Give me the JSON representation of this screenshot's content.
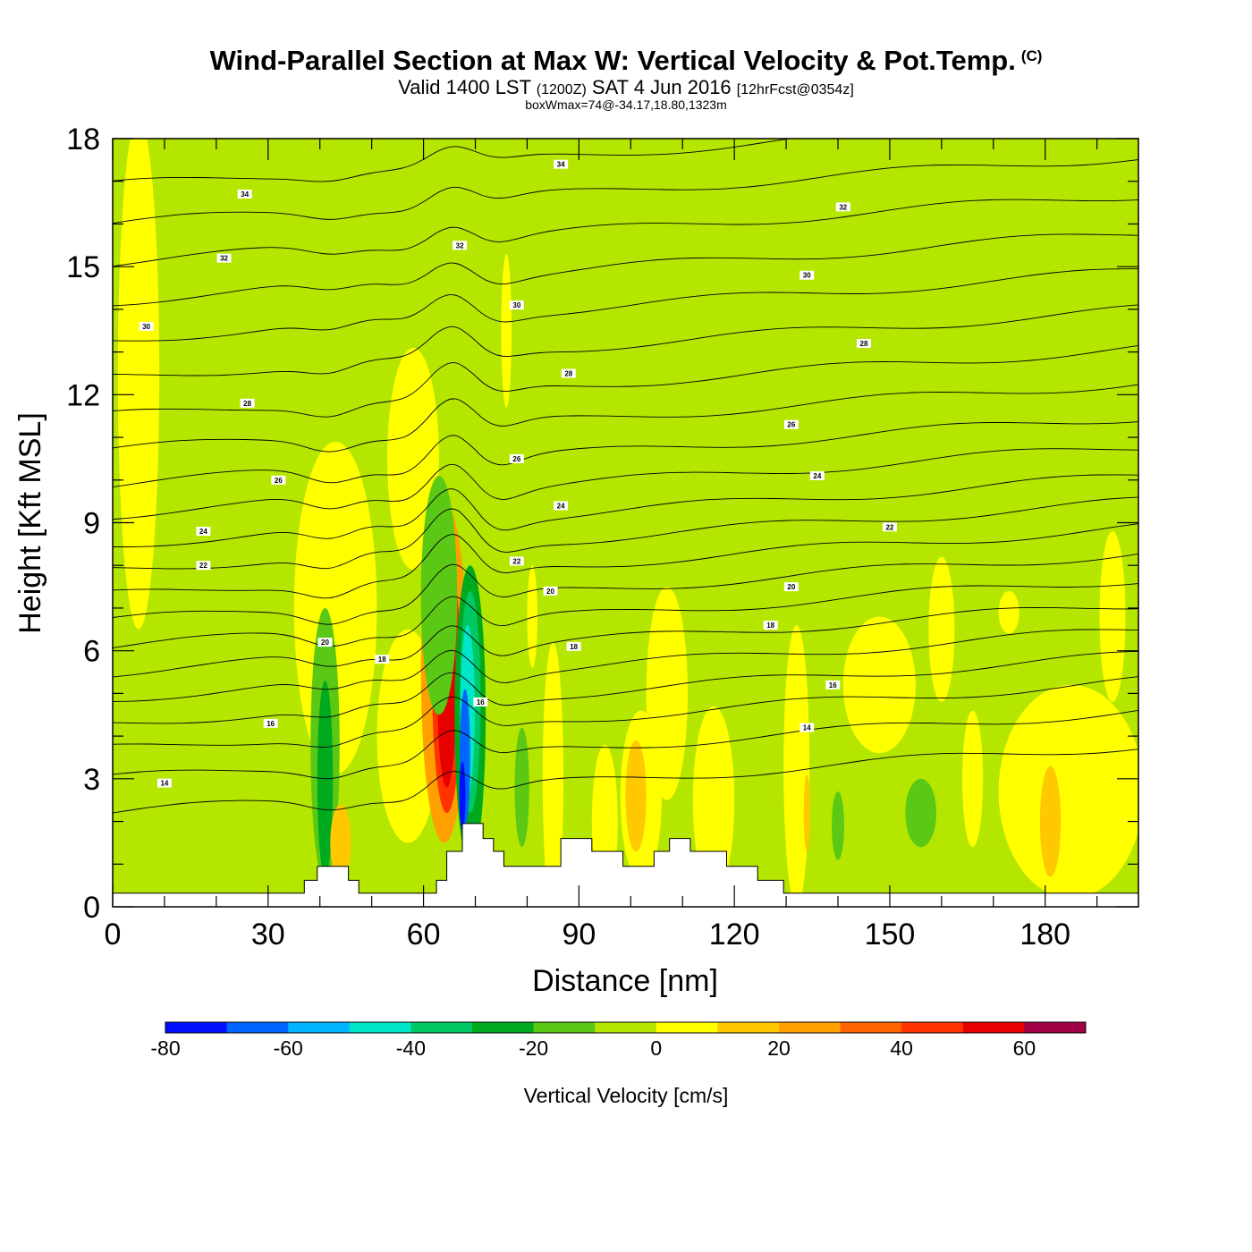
{
  "title": {
    "main": "Wind-Parallel Section at Max W: Vertical Velocity & Pot.Temp.",
    "copyright": "(C)",
    "valid_prefix": "Valid 1400 LST",
    "valid_utc": "(1200Z)",
    "valid_date": "SAT 4 Jun 2016",
    "forecast": "[12hrFcst@0354z]",
    "boxinfo": "boxWmax=74@-34.17,18.80,1323m"
  },
  "chart_data": {
    "type": "heatmap",
    "title": "Wind-Parallel Section at Max W: Vertical Velocity & Pot.Temp.",
    "xlabel": "Distance [nm]",
    "ylabel": "Height [Kft MSL]",
    "xlim": [
      0,
      198
    ],
    "ylim": [
      0,
      18
    ],
    "xticks": [
      0,
      30,
      60,
      90,
      120,
      150,
      180
    ],
    "xtick_labels": [
      "0",
      "30",
      "60",
      "90",
      "120",
      "150",
      "180"
    ],
    "yticks": [
      0,
      3,
      6,
      9,
      12,
      15,
      18
    ],
    "ytick_labels": [
      "0",
      "3",
      "6",
      "9",
      "12",
      "15",
      "18"
    ],
    "colorbar": {
      "label": "Vertical Velocity [cm/s]",
      "bins": [
        -80,
        -70,
        -60,
        -50,
        -40,
        -30,
        -20,
        -10,
        0,
        10,
        20,
        30,
        40,
        50,
        60,
        70
      ],
      "colors": [
        "#0010ff",
        "#0064ff",
        "#00b4ff",
        "#00e6c8",
        "#00c864",
        "#00aa1e",
        "#5ac814",
        "#b4e600",
        "#ffff00",
        "#ffc800",
        "#ffa000",
        "#ff6400",
        "#ff3200",
        "#e60000",
        "#a00046"
      ],
      "tick_values": [
        -80,
        -60,
        -40,
        -20,
        0,
        20,
        40,
        60
      ],
      "tick_labels": [
        "-80",
        "-60",
        "-40",
        "-20",
        "0",
        "20",
        "40",
        "60"
      ]
    },
    "background_color": "#b4e600",
    "velocity_features": [
      {
        "kind": "updraft",
        "x": 5,
        "y": 12.5,
        "rx": 4,
        "ry": 6,
        "color": "#ffff00"
      },
      {
        "kind": "updraft",
        "x": 43,
        "y": 7.0,
        "rx": 8,
        "ry": 3.9,
        "color": "#ffff00"
      },
      {
        "kind": "updraft",
        "x": 57,
        "y": 4.0,
        "rx": 6,
        "ry": 2.5,
        "color": "#ffff00"
      },
      {
        "kind": "updraft",
        "x": 58,
        "y": 10.5,
        "rx": 5,
        "ry": 2.6,
        "color": "#ffff00"
      },
      {
        "kind": "updraft",
        "x": 64,
        "y": 5.5,
        "rx": 4.5,
        "ry": 4.0,
        "color": "#ffa000"
      },
      {
        "kind": "updraft",
        "x": 64.5,
        "y": 5.2,
        "rx": 2.8,
        "ry": 3.0,
        "color": "#ff3200"
      },
      {
        "kind": "updraft",
        "x": 64.5,
        "y": 5.0,
        "rx": 1.8,
        "ry": 2.2,
        "color": "#e60000"
      },
      {
        "kind": "downdraft",
        "x": 41,
        "y": 3.8,
        "rx": 2.8,
        "ry": 3.2,
        "color": "#5ac814"
      },
      {
        "kind": "downdraft",
        "x": 41,
        "y": 3.0,
        "rx": 1.5,
        "ry": 2.3,
        "color": "#00aa1e"
      },
      {
        "kind": "downdraft",
        "x": 63,
        "y": 7.3,
        "rx": 3.5,
        "ry": 2.8,
        "color": "#5ac814"
      },
      {
        "kind": "downdraft",
        "x": 69,
        "y": 4.5,
        "rx": 3.0,
        "ry": 3.5,
        "color": "#00aa1e"
      },
      {
        "kind": "downdraft",
        "x": 69,
        "y": 4.8,
        "rx": 2.0,
        "ry": 2.6,
        "color": "#00c864"
      },
      {
        "kind": "downdraft",
        "x": 68.5,
        "y": 4.6,
        "rx": 1.4,
        "ry": 2.0,
        "color": "#00e6c8"
      },
      {
        "kind": "downdraft",
        "x": 68,
        "y": 3.5,
        "rx": 1.0,
        "ry": 1.6,
        "color": "#0064ff"
      },
      {
        "kind": "downdraft",
        "x": 67.5,
        "y": 2.6,
        "rx": 0.6,
        "ry": 0.8,
        "color": "#0010ff"
      },
      {
        "kind": "downdraft",
        "x": 79,
        "y": 2.8,
        "rx": 1.4,
        "ry": 1.4,
        "color": "#5ac814"
      },
      {
        "kind": "downdraft",
        "x": 140,
        "y": 1.9,
        "rx": 1.2,
        "ry": 0.8,
        "color": "#5ac814"
      },
      {
        "kind": "downdraft",
        "x": 156,
        "y": 2.2,
        "rx": 3.0,
        "ry": 0.8,
        "color": "#5ac814"
      },
      {
        "kind": "updraft",
        "x": 76,
        "y": 13.5,
        "rx": 1.0,
        "ry": 1.8,
        "color": "#ffff00"
      },
      {
        "kind": "updraft",
        "x": 81,
        "y": 6.8,
        "rx": 1.0,
        "ry": 1.2,
        "color": "#ffff00"
      },
      {
        "kind": "updraft",
        "x": 85,
        "y": 3.0,
        "rx": 2.0,
        "ry": 3.2,
        "color": "#ffff00"
      },
      {
        "kind": "updraft",
        "x": 95,
        "y": 2.0,
        "rx": 2.5,
        "ry": 1.8,
        "color": "#ffff00"
      },
      {
        "kind": "updraft",
        "x": 102,
        "y": 2.6,
        "rx": 4.0,
        "ry": 2.0,
        "color": "#ffff00"
      },
      {
        "kind": "updraft",
        "x": 101,
        "y": 2.6,
        "rx": 2.0,
        "ry": 1.3,
        "color": "#ffc800"
      },
      {
        "kind": "updraft",
        "x": 107,
        "y": 5.0,
        "rx": 4.0,
        "ry": 2.5,
        "color": "#ffff00"
      },
      {
        "kind": "updraft",
        "x": 116,
        "y": 2.5,
        "rx": 4.0,
        "ry": 2.2,
        "color": "#ffff00"
      },
      {
        "kind": "updraft",
        "x": 132,
        "y": 3.3,
        "rx": 2.5,
        "ry": 3.3,
        "color": "#ffff00"
      },
      {
        "kind": "updraft",
        "x": 134,
        "y": 2.2,
        "rx": 0.6,
        "ry": 0.9,
        "color": "#ffc800"
      },
      {
        "kind": "updraft",
        "x": 148,
        "y": 5.2,
        "rx": 7.0,
        "ry": 1.6,
        "color": "#ffff00"
      },
      {
        "kind": "updraft",
        "x": 160,
        "y": 6.5,
        "rx": 2.5,
        "ry": 1.7,
        "color": "#ffff00"
      },
      {
        "kind": "updraft",
        "x": 166,
        "y": 3.0,
        "rx": 2.0,
        "ry": 1.6,
        "color": "#ffff00"
      },
      {
        "kind": "updraft",
        "x": 173,
        "y": 6.9,
        "rx": 2.0,
        "ry": 0.5,
        "color": "#ffff00"
      },
      {
        "kind": "updraft",
        "x": 185,
        "y": 2.7,
        "rx": 14.0,
        "ry": 2.5,
        "color": "#ffff00"
      },
      {
        "kind": "updraft",
        "x": 181,
        "y": 2.0,
        "rx": 2.0,
        "ry": 1.3,
        "color": "#ffc800"
      },
      {
        "kind": "updraft",
        "x": 193,
        "y": 6.8,
        "rx": 2.5,
        "ry": 2.0,
        "color": "#ffff00"
      },
      {
        "kind": "updraft",
        "x": 44,
        "y": 1.5,
        "rx": 2.0,
        "ry": 0.9,
        "color": "#ffc800"
      }
    ],
    "theta_contours": {
      "levels": [
        14,
        15,
        16,
        17,
        18,
        19,
        20,
        21,
        22,
        23,
        24,
        25,
        26,
        27,
        28,
        29,
        30,
        31,
        32,
        33,
        34
      ],
      "base_heights": [
        2.2,
        3.0,
        3.7,
        4.3,
        4.9,
        5.5,
        6.1,
        6.7,
        7.3,
        7.9,
        8.5,
        9.2,
        9.9,
        10.7,
        11.5,
        12.4,
        13.3,
        14.2,
        15.1,
        16.0,
        16.9
      ],
      "slope_kft_per_nm": 0.008,
      "labels": [
        {
          "value": "14",
          "x": 10,
          "y": 2.9
        },
        {
          "value": "16",
          "x": 30.5,
          "y": 4.3
        },
        {
          "value": "20",
          "x": 41,
          "y": 6.2
        },
        {
          "value": "18",
          "x": 52,
          "y": 5.8
        },
        {
          "value": "16",
          "x": 71,
          "y": 4.8
        },
        {
          "value": "18",
          "x": 89,
          "y": 6.1
        },
        {
          "value": "20",
          "x": 84.5,
          "y": 7.4
        },
        {
          "value": "22",
          "x": 78,
          "y": 8.1
        },
        {
          "value": "24",
          "x": 86.5,
          "y": 9.4
        },
        {
          "value": "26",
          "x": 78,
          "y": 10.5
        },
        {
          "value": "28",
          "x": 88,
          "y": 12.5
        },
        {
          "value": "30",
          "x": 78,
          "y": 14.1
        },
        {
          "value": "32",
          "x": 67,
          "y": 15.5
        },
        {
          "value": "34",
          "x": 86.5,
          "y": 17.4
        },
        {
          "value": "14",
          "x": 134,
          "y": 4.2
        },
        {
          "value": "16",
          "x": 139,
          "y": 5.2
        },
        {
          "value": "18",
          "x": 127,
          "y": 6.6
        },
        {
          "value": "20",
          "x": 131,
          "y": 7.5
        },
        {
          "value": "22",
          "x": 150,
          "y": 8.9
        },
        {
          "value": "24",
          "x": 136,
          "y": 10.1
        },
        {
          "value": "26",
          "x": 131,
          "y": 11.3
        },
        {
          "value": "28",
          "x": 145,
          "y": 13.2
        },
        {
          "value": "30",
          "x": 134,
          "y": 14.8
        },
        {
          "value": "32",
          "x": 141,
          "y": 16.4
        },
        {
          "value": "34",
          "x": 25.5,
          "y": 16.7
        },
        {
          "value": "32",
          "x": 21.5,
          "y": 15.2
        },
        {
          "value": "30",
          "x": 6.5,
          "y": 13.6
        },
        {
          "value": "28",
          "x": 26,
          "y": 11.8
        },
        {
          "value": "26",
          "x": 32,
          "y": 10.0
        },
        {
          "value": "24",
          "x": 17.5,
          "y": 8.8
        },
        {
          "value": "22",
          "x": 17.5,
          "y": 8.0
        }
      ]
    },
    "terrain": {
      "x": [
        0,
        37,
        37,
        39.5,
        39.5,
        45.5,
        45.5,
        47.5,
        47.5,
        62.5,
        62.5,
        64.5,
        64.5,
        67.5,
        67.5,
        71.5,
        71.5,
        73.5,
        73.5,
        75.5,
        75.5,
        86.5,
        86.5,
        92.5,
        92.5,
        98.5,
        98.5,
        104.5,
        104.5,
        107.5,
        107.5,
        111.5,
        111.5,
        118.5,
        118.5,
        124.5,
        124.5,
        129.5,
        129.5,
        198
      ],
      "y": [
        0.32,
        0.32,
        0.62,
        0.62,
        0.95,
        0.95,
        0.62,
        0.62,
        0.32,
        0.32,
        0.62,
        0.62,
        1.3,
        1.3,
        1.95,
        1.95,
        1.6,
        1.6,
        1.3,
        1.3,
        0.95,
        0.95,
        1.6,
        1.6,
        1.3,
        1.3,
        0.95,
        0.95,
        1.3,
        1.3,
        1.6,
        1.6,
        1.3,
        1.3,
        0.95,
        0.95,
        0.62,
        0.62,
        0.32,
        0.32
      ]
    }
  }
}
